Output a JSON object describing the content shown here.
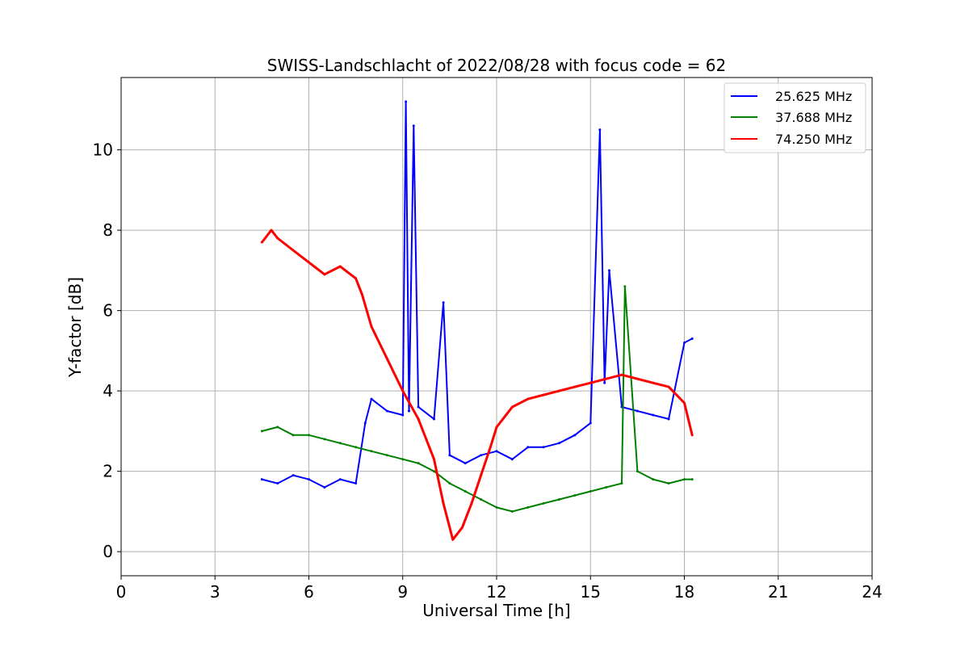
{
  "chart_data": {
    "type": "line",
    "title": "SWISS-Landschlacht of 2022/08/28 with focus code = 62",
    "xlabel": "Universal Time [h]",
    "ylabel": "Y-factor [dB]",
    "xlim": [
      0,
      24
    ],
    "ylim": [
      -0.6,
      11.8
    ],
    "xticks": [
      "0",
      "3",
      "6",
      "9",
      "12",
      "15",
      "18",
      "21",
      "24"
    ],
    "yticks": [
      "0",
      "2",
      "4",
      "6",
      "8",
      "10"
    ],
    "grid": true,
    "legend_position": "top-right",
    "series": [
      {
        "name": "25.625 MHz",
        "color": "#0000ff",
        "x": [
          4.5,
          5.0,
          5.5,
          6.0,
          6.5,
          7.0,
          7.5,
          7.8,
          8.0,
          8.5,
          9.0,
          9.1,
          9.2,
          9.35,
          9.5,
          10.0,
          10.3,
          10.5,
          11.0,
          11.5,
          12.0,
          12.5,
          13.0,
          13.5,
          14.0,
          14.5,
          15.0,
          15.3,
          15.45,
          15.6,
          16.0,
          16.5,
          17.0,
          17.5,
          18.0,
          18.25
        ],
        "y": [
          1.8,
          1.7,
          1.9,
          1.8,
          1.6,
          1.8,
          1.7,
          3.2,
          3.8,
          3.5,
          3.4,
          11.2,
          3.5,
          10.6,
          3.6,
          3.3,
          6.2,
          2.4,
          2.2,
          2.4,
          2.5,
          2.3,
          2.6,
          2.6,
          2.7,
          2.9,
          3.2,
          10.5,
          4.2,
          7.0,
          3.6,
          3.5,
          3.4,
          3.3,
          5.2,
          5.3
        ]
      },
      {
        "name": "37.688 MHz",
        "color": "#008000",
        "x": [
          4.5,
          5.0,
          5.5,
          6.0,
          6.5,
          7.0,
          7.5,
          8.0,
          8.5,
          9.0,
          9.5,
          10.0,
          10.5,
          11.0,
          11.5,
          12.0,
          12.5,
          13.0,
          13.5,
          14.0,
          14.5,
          15.0,
          15.5,
          16.0,
          16.1,
          16.5,
          17.0,
          17.5,
          18.0,
          18.25
        ],
        "y": [
          3.0,
          3.1,
          2.9,
          2.9,
          2.8,
          2.7,
          2.6,
          2.5,
          2.4,
          2.3,
          2.2,
          2.0,
          1.7,
          1.5,
          1.3,
          1.1,
          1.0,
          1.1,
          1.2,
          1.3,
          1.4,
          1.5,
          1.6,
          1.7,
          6.6,
          2.0,
          1.8,
          1.7,
          1.8,
          1.8
        ]
      },
      {
        "name": "74.250 MHz",
        "color": "#ff0000",
        "x": [
          4.5,
          4.8,
          5.0,
          5.5,
          6.0,
          6.5,
          7.0,
          7.5,
          7.7,
          8.0,
          8.5,
          9.0,
          9.5,
          10.0,
          10.3,
          10.6,
          10.9,
          11.2,
          11.5,
          11.8,
          12.0,
          12.5,
          13.0,
          13.5,
          14.0,
          14.5,
          15.0,
          15.5,
          16.0,
          16.5,
          17.0,
          17.5,
          18.0,
          18.25
        ],
        "y": [
          7.7,
          8.0,
          7.8,
          7.5,
          7.2,
          6.9,
          7.1,
          6.8,
          6.4,
          5.6,
          4.8,
          4.0,
          3.3,
          2.3,
          1.2,
          0.3,
          0.6,
          1.2,
          1.9,
          2.6,
          3.1,
          3.6,
          3.8,
          3.9,
          4.0,
          4.1,
          4.2,
          4.3,
          4.4,
          4.3,
          4.2,
          4.1,
          3.7,
          2.9
        ]
      }
    ]
  }
}
